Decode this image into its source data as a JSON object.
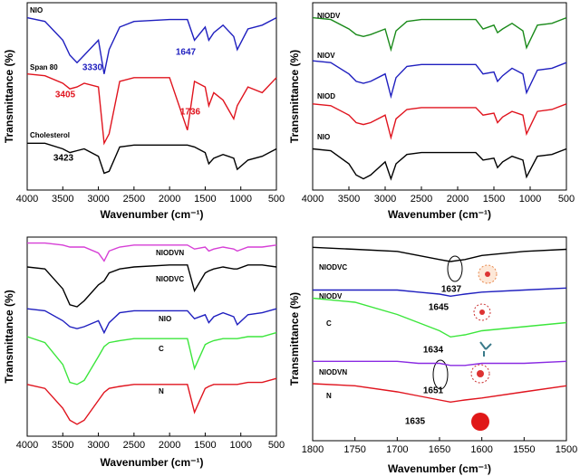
{
  "chart_data": [
    {
      "type": "line",
      "xlabel": "Wavenumber (cm⁻¹)",
      "ylabel": "Transmittance (%)",
      "xlim": [
        4000,
        500
      ],
      "ylim": [
        0,
        100
      ],
      "xticks": [
        4000,
        3500,
        3000,
        2500,
        2000,
        1500,
        1000,
        500
      ],
      "x": [
        4000,
        3750,
        3500,
        3400,
        3300,
        3200,
        3000,
        2920,
        2850,
        2700,
        2500,
        2000,
        1750,
        1650,
        1500,
        1450,
        1380,
        1250,
        1100,
        1050,
        900,
        700,
        500
      ],
      "series": [
        {
          "name": "NIO",
          "color": "#1f1fbf",
          "values": [
            92,
            90,
            80,
            72,
            68,
            72,
            80,
            62,
            75,
            87,
            90,
            91,
            91,
            80,
            87,
            80,
            84,
            88,
            82,
            75,
            86,
            88,
            92
          ]
        },
        {
          "name": "Span 80",
          "color": "#e0141e",
          "values": [
            62,
            61,
            57,
            54,
            55,
            57,
            55,
            25,
            30,
            58,
            60,
            60,
            32,
            58,
            55,
            45,
            52,
            48,
            38,
            45,
            55,
            52,
            60
          ]
        },
        {
          "name": "Cholesterol",
          "color": "#000000",
          "values": [
            25,
            25,
            22,
            20,
            21,
            22,
            18,
            9,
            10,
            23,
            24,
            24,
            24,
            23,
            20,
            14,
            17,
            19,
            17,
            11,
            16,
            18,
            22
          ]
        }
      ],
      "annotations": [
        {
          "text": "3330",
          "color": "#1f1fbf"
        },
        {
          "text": "1647",
          "color": "#1f1fbf"
        },
        {
          "text": "3405",
          "color": "#e0141e"
        },
        {
          "text": "1736",
          "color": "#e0141e"
        },
        {
          "text": "3423",
          "color": "#000000"
        }
      ]
    },
    {
      "type": "line",
      "xlabel": "Wavenumber (cm⁻¹)",
      "ylabel": "Transmittance (%)",
      "xlim": [
        4000,
        500
      ],
      "ylim": [
        0,
        100
      ],
      "xticks": [
        4000,
        3500,
        3000,
        2500,
        2000,
        1500,
        1000,
        500
      ],
      "x": [
        4000,
        3750,
        3500,
        3400,
        3300,
        3200,
        3000,
        2920,
        2850,
        2700,
        2500,
        2000,
        1750,
        1650,
        1500,
        1450,
        1380,
        1250,
        1100,
        1050,
        900,
        700,
        500
      ],
      "series": [
        {
          "name": "NIODV",
          "color": "#1a8a1a",
          "values": [
            92,
            91,
            86,
            83,
            82,
            83,
            86,
            75,
            85,
            90,
            91,
            91,
            91,
            86,
            88,
            84,
            86,
            89,
            85,
            76,
            88,
            89,
            92
          ]
        },
        {
          "name": "NIOV",
          "color": "#1f1fbf",
          "values": [
            69,
            68,
            62,
            58,
            57,
            58,
            62,
            50,
            60,
            66,
            67,
            67,
            67,
            62,
            63,
            58,
            61,
            65,
            62,
            52,
            64,
            65,
            68
          ]
        },
        {
          "name": "NIOD",
          "color": "#e0141e",
          "values": [
            46,
            45,
            40,
            36,
            35,
            36,
            40,
            28,
            38,
            43,
            44,
            44,
            44,
            40,
            41,
            36,
            39,
            42,
            40,
            30,
            42,
            43,
            46
          ]
        },
        {
          "name": "NIO",
          "color": "#000000",
          "values": [
            22,
            21,
            14,
            8,
            6,
            8,
            15,
            6,
            14,
            19,
            20,
            20,
            20,
            16,
            17,
            12,
            15,
            18,
            16,
            7,
            18,
            19,
            22
          ]
        }
      ],
      "annotations": []
    },
    {
      "type": "line",
      "xlabel": "Wavenumber (cm⁻¹)",
      "ylabel": "Transmittance (%)",
      "xlim": [
        4000,
        500
      ],
      "ylim": [
        0,
        100
      ],
      "xticks": [
        4000,
        3500,
        3000,
        2500,
        2000,
        1500,
        1000,
        500
      ],
      "x": [
        4000,
        3750,
        3500,
        3400,
        3300,
        3200,
        3000,
        2920,
        2850,
        2700,
        2500,
        2000,
        1750,
        1650,
        1500,
        1450,
        1380,
        1250,
        1100,
        1050,
        900,
        700,
        500
      ],
      "series": [
        {
          "name": "NIODVN",
          "color": "#d63fd6",
          "values": [
            97,
            97,
            96,
            95,
            95,
            95,
            92,
            88,
            93,
            95,
            96,
            96,
            96,
            94,
            95,
            93,
            94,
            95,
            94,
            93,
            95,
            95,
            96
          ]
        },
        {
          "name": "NIODVC",
          "color": "#000000",
          "values": [
            85,
            84,
            74,
            66,
            65,
            68,
            76,
            78,
            82,
            84,
            85,
            86,
            86,
            73,
            82,
            83,
            84,
            85,
            84,
            84,
            86,
            86,
            85
          ]
        },
        {
          "name": "NIO",
          "color": "#1f1fbf",
          "values": [
            64,
            63,
            58,
            55,
            54,
            55,
            58,
            52,
            57,
            62,
            63,
            63,
            63,
            59,
            61,
            57,
            60,
            62,
            60,
            56,
            61,
            62,
            64
          ]
        },
        {
          "name": "C",
          "color": "#3ce63c",
          "values": [
            50,
            47,
            36,
            27,
            26,
            28,
            40,
            45,
            47,
            48,
            49,
            49,
            49,
            34,
            46,
            47,
            48,
            49,
            49,
            49,
            50,
            50,
            52
          ]
        },
        {
          "name": "N",
          "color": "#e0141e",
          "values": [
            26,
            24,
            14,
            8,
            6,
            8,
            18,
            22,
            24,
            25,
            26,
            26,
            26,
            12,
            24,
            25,
            26,
            26,
            26,
            26,
            27,
            27,
            29
          ]
        }
      ],
      "annotations": []
    },
    {
      "type": "line",
      "xlabel": "Wavenumber (cm⁻¹)",
      "ylabel": "Transmittance (%)",
      "xlim": [
        1800,
        1500
      ],
      "ylim": [
        0,
        100
      ],
      "xticks": [
        1800,
        1750,
        1700,
        1650,
        1600,
        1550,
        1500
      ],
      "x": [
        1800,
        1750,
        1700,
        1675,
        1650,
        1637,
        1620,
        1600,
        1550,
        1500
      ],
      "series": [
        {
          "name": "NIODVC",
          "color": "#000000",
          "values": [
            95,
            94,
            93,
            91,
            89,
            88,
            89,
            91,
            93,
            94
          ]
        },
        {
          "name": "NIODV",
          "color": "#1f1fbf",
          "values": [
            74,
            74,
            74,
            73,
            72,
            71,
            72,
            73,
            74,
            75
          ]
        },
        {
          "name": "C",
          "color": "#3ce63c",
          "values": [
            70,
            68,
            62,
            58,
            54,
            51,
            52,
            54,
            56,
            58
          ]
        },
        {
          "name": "NIODVN",
          "color": "#8a2be2",
          "values": [
            39,
            39,
            39,
            38,
            38,
            37,
            37,
            38,
            38,
            39
          ]
        },
        {
          "name": "N",
          "color": "#e0141e",
          "values": [
            28,
            27,
            24,
            22,
            20,
            19,
            20,
            21,
            24,
            27
          ]
        }
      ],
      "annotations": [
        {
          "text": "1637",
          "color": "#000000"
        },
        {
          "text": "1645",
          "color": "#000000"
        },
        {
          "text": "1634",
          "color": "#000000"
        },
        {
          "text": "1651",
          "color": "#000000"
        },
        {
          "text": "1635",
          "color": "#000000"
        }
      ]
    }
  ]
}
